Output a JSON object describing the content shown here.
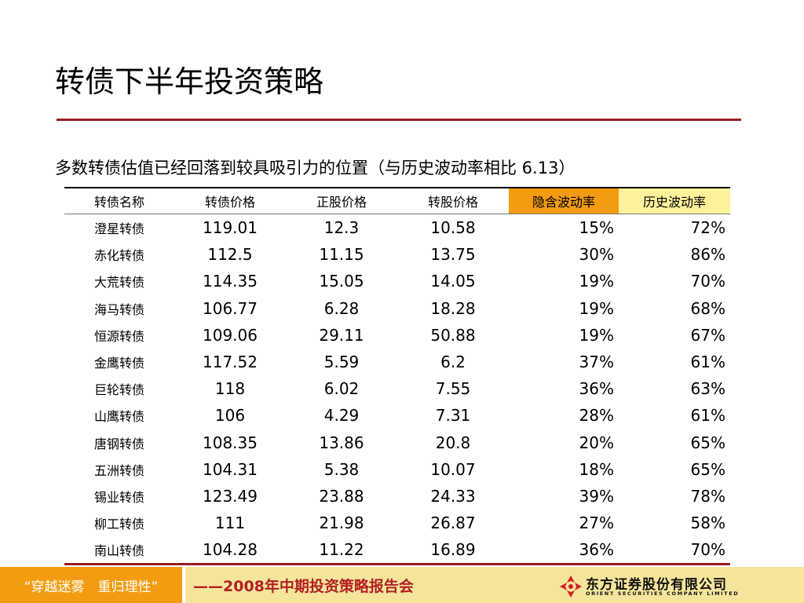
{
  "slide": {
    "title": "转债下半年投资策略",
    "subtitle": "多数转债估值已经回落到较具吸引力的位置（与历史波动率相比 6.13）"
  },
  "table": {
    "headers": [
      "转债名称",
      "转债价格",
      "正股价格",
      "转股价格",
      "隐含波动率",
      "历史波动率"
    ],
    "header_colors": {
      "implied": "#f39c12",
      "historical": "#fdf19b"
    },
    "rows": [
      [
        "澄星转债",
        "119.01",
        "12.3",
        "10.58",
        "15%",
        "72%"
      ],
      [
        "赤化转债",
        "112.5",
        "11.15",
        "13.75",
        "30%",
        "86%"
      ],
      [
        "大荒转债",
        "114.35",
        "15.05",
        "14.05",
        "19%",
        "70%"
      ],
      [
        "海马转债",
        "106.77",
        "6.28",
        "18.28",
        "19%",
        "68%"
      ],
      [
        "恒源转债",
        "109.06",
        "29.11",
        "50.88",
        "19%",
        "67%"
      ],
      [
        "金鹰转债",
        "117.52",
        "5.59",
        "6.2",
        "37%",
        "61%"
      ],
      [
        "巨轮转债",
        "118",
        "6.02",
        "7.55",
        "36%",
        "63%"
      ],
      [
        "山鹰转债",
        "106",
        "4.29",
        "7.31",
        "28%",
        "61%"
      ],
      [
        "唐钢转债",
        "108.35",
        "13.86",
        "20.8",
        "20%",
        "65%"
      ],
      [
        "五洲转债",
        "104.31",
        "5.38",
        "10.07",
        "18%",
        "65%"
      ],
      [
        "锡业转债",
        "123.49",
        "23.88",
        "24.33",
        "39%",
        "78%"
      ],
      [
        "柳工转债",
        "111",
        "21.98",
        "26.87",
        "27%",
        "58%"
      ],
      [
        "南山转债",
        "104.28",
        "11.22",
        "16.89",
        "36%",
        "70%"
      ]
    ]
  },
  "footer": {
    "slogan": "“穿越迷雾　重归理性”",
    "event": "——2008年中期投资策略报告会",
    "logo_cn": "东方证券股份有限公司",
    "logo_en": "ORIENT SECURITIES COMPANY LIMITED",
    "logo_icon": "orient-securities-logo-icon",
    "accent_color": "#b11f23"
  }
}
